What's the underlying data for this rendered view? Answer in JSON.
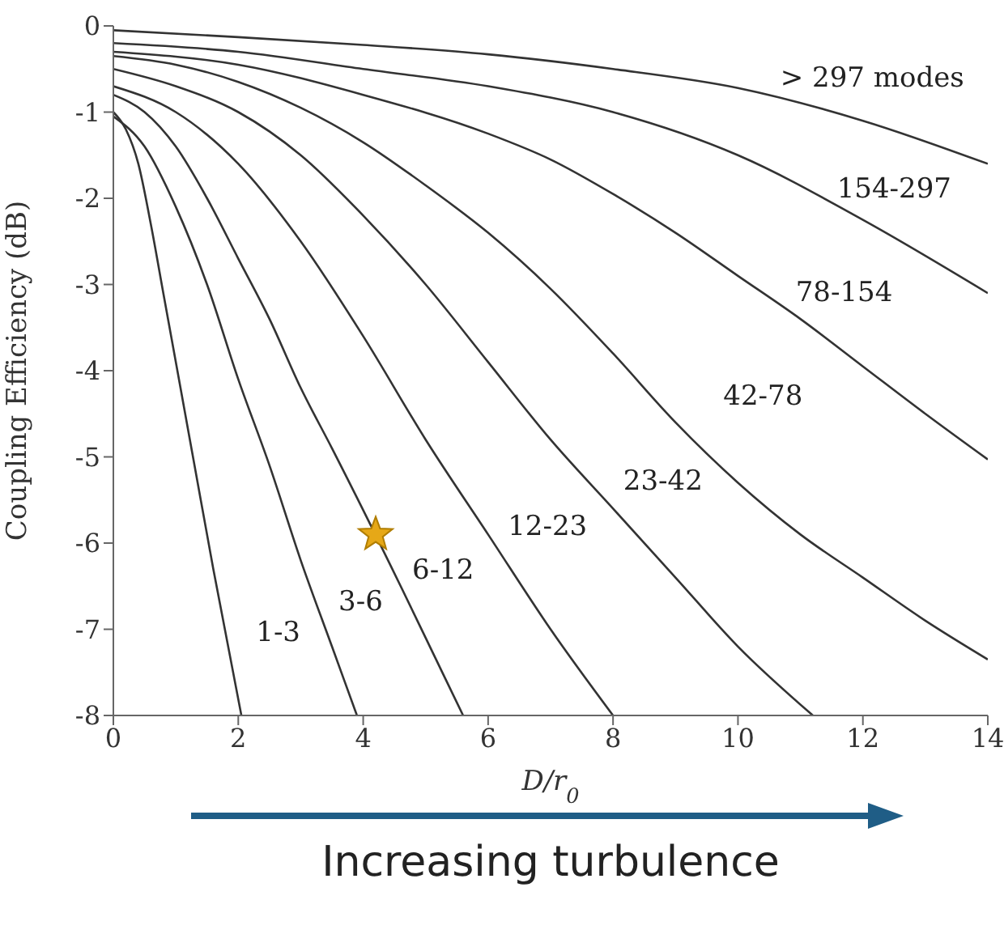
{
  "chart_data": {
    "type": "line",
    "xlabel": "D/r$_{0}$",
    "ylabel": "Coupling Efficiency (dB)",
    "xlim": [
      0,
      14
    ],
    "xticks": [
      0,
      2,
      4,
      6,
      8,
      10,
      12,
      14
    ],
    "ylim": [
      -8,
      0
    ],
    "yticks": [
      -8,
      -7,
      -6,
      -5,
      -4,
      -3,
      -2,
      -1,
      0
    ],
    "grid": false,
    "line_style": "solid",
    "series": [
      {
        "color": "#333333",
        "x": [
          0,
          0.2,
          0.4,
          0.6,
          0.8,
          1.0,
          1.3,
          1.6,
          2.05
        ],
        "values": [
          -1.0,
          -1.2,
          -1.6,
          -2.3,
          -3.1,
          -3.9,
          -5.1,
          -6.3,
          -8
        ]
      },
      {
        "color": "#333333",
        "x": [
          0,
          0.5,
          1.0,
          1.5,
          2.0,
          2.5,
          3.0,
          3.5,
          3.9
        ],
        "values": [
          -1.05,
          -1.4,
          -2.1,
          -3.0,
          -4.1,
          -5.1,
          -6.2,
          -7.2,
          -8
        ]
      },
      {
        "color": "#333333",
        "x": [
          0,
          0.5,
          1.0,
          1.5,
          2.0,
          2.5,
          3.0,
          3.5,
          4.6,
          5.0,
          5.6
        ],
        "values": [
          -0.8,
          -1.0,
          -1.4,
          -2.0,
          -2.7,
          -3.4,
          -4.2,
          -4.9,
          -6.5,
          -7.1,
          -8
        ]
      },
      {
        "color": "#333333",
        "x": [
          0,
          1,
          2,
          3,
          4,
          5,
          6,
          7,
          8
        ],
        "values": [
          -0.7,
          -1.0,
          -1.6,
          -2.5,
          -3.6,
          -4.8,
          -5.9,
          -7.0,
          -8
        ]
      },
      {
        "color": "#333333",
        "x": [
          0,
          1,
          2,
          3,
          4,
          5,
          6,
          7,
          8,
          9,
          10,
          11.2
        ],
        "values": [
          -0.5,
          -0.7,
          -1.0,
          -1.5,
          -2.2,
          -3.0,
          -3.9,
          -4.8,
          -5.6,
          -6.4,
          -7.2,
          -8
        ]
      },
      {
        "color": "#333333",
        "x": [
          0,
          1,
          2,
          3,
          4,
          5,
          6,
          7,
          8,
          9,
          10,
          11,
          12,
          13,
          14
        ],
        "values": [
          -0.35,
          -0.45,
          -0.65,
          -0.95,
          -1.35,
          -1.85,
          -2.4,
          -3.05,
          -3.8,
          -4.6,
          -5.3,
          -5.9,
          -6.4,
          -6.9,
          -7.35
        ]
      },
      {
        "color": "#333333",
        "x": [
          0,
          2,
          4,
          6,
          7,
          8,
          9,
          10,
          11,
          12,
          13,
          14
        ],
        "values": [
          -0.3,
          -0.45,
          -0.8,
          -1.25,
          -1.55,
          -1.95,
          -2.4,
          -2.9,
          -3.4,
          -3.95,
          -4.5,
          -5.03
        ]
      },
      {
        "color": "#333333",
        "x": [
          0,
          2,
          4,
          6,
          8,
          10,
          12,
          14
        ],
        "values": [
          -0.2,
          -0.3,
          -0.5,
          -0.7,
          -1.0,
          -1.5,
          -2.25,
          -3.1
        ]
      },
      {
        "color": "#333333",
        "x": [
          0,
          2,
          4,
          6,
          8,
          10,
          12,
          14
        ],
        "values": [
          -0.05,
          -0.13,
          -0.22,
          -0.33,
          -0.5,
          -0.72,
          -1.1,
          -1.6
        ]
      },
      {
        "type": "scatter",
        "marker": "star",
        "color": "#e6a817",
        "x": [
          4.2
        ],
        "values": [
          -5.9
        ]
      }
    ],
    "annotations": [
      "> 297 modes",
      "154-297",
      "78-154",
      "42-78",
      "23-42",
      "12-23",
      "6-12",
      "3-6",
      "1-3",
      "Increasing turbulence"
    ]
  }
}
